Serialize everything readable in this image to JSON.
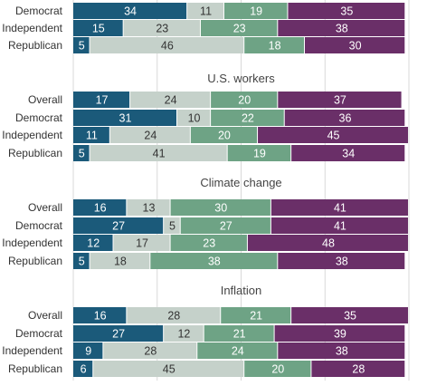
{
  "chart_data": {
    "type": "bar",
    "orientation": "horizontal",
    "stacked": true,
    "xlim": [
      0,
      100
    ],
    "grid": true,
    "colors": [
      "#1b5a7a",
      "#c5d1ca",
      "#6ea385",
      "#6a2f68"
    ],
    "label_colors": [
      "#ffffff",
      "#333333",
      "#ffffff",
      "#ffffff"
    ],
    "panels": [
      {
        "title": "",
        "rows": [
          {
            "label": "Democrat",
            "values": [
              34,
              11,
              19,
              35
            ]
          },
          {
            "label": "Independent",
            "values": [
              15,
              23,
              23,
              38
            ]
          },
          {
            "label": "Republican",
            "values": [
              5,
              46,
              18,
              30
            ]
          }
        ]
      },
      {
        "title": "U.S. workers",
        "rows": [
          {
            "label": "Overall",
            "values": [
              17,
              24,
              20,
              37
            ]
          },
          {
            "label": "Democrat",
            "values": [
              31,
              10,
              22,
              36
            ]
          },
          {
            "label": "Independent",
            "values": [
              11,
              24,
              20,
              45
            ]
          },
          {
            "label": "Republican",
            "values": [
              5,
              41,
              19,
              34
            ]
          }
        ]
      },
      {
        "title": "Climate change",
        "rows": [
          {
            "label": "Overall",
            "values": [
              16,
              13,
              30,
              41
            ]
          },
          {
            "label": "Democrat",
            "values": [
              27,
              5,
              27,
              41
            ]
          },
          {
            "label": "Independent",
            "values": [
              12,
              17,
              23,
              48
            ]
          },
          {
            "label": "Republican",
            "values": [
              5,
              18,
              38,
              38
            ]
          }
        ]
      },
      {
        "title": "Inflation",
        "rows": [
          {
            "label": "Overall",
            "values": [
              16,
              28,
              21,
              35
            ]
          },
          {
            "label": "Democrat",
            "values": [
              27,
              12,
              21,
              39
            ]
          },
          {
            "label": "Independent",
            "values": [
              9,
              28,
              24,
              38
            ]
          },
          {
            "label": "Republican",
            "values": [
              6,
              45,
              20,
              28
            ]
          }
        ]
      }
    ]
  }
}
